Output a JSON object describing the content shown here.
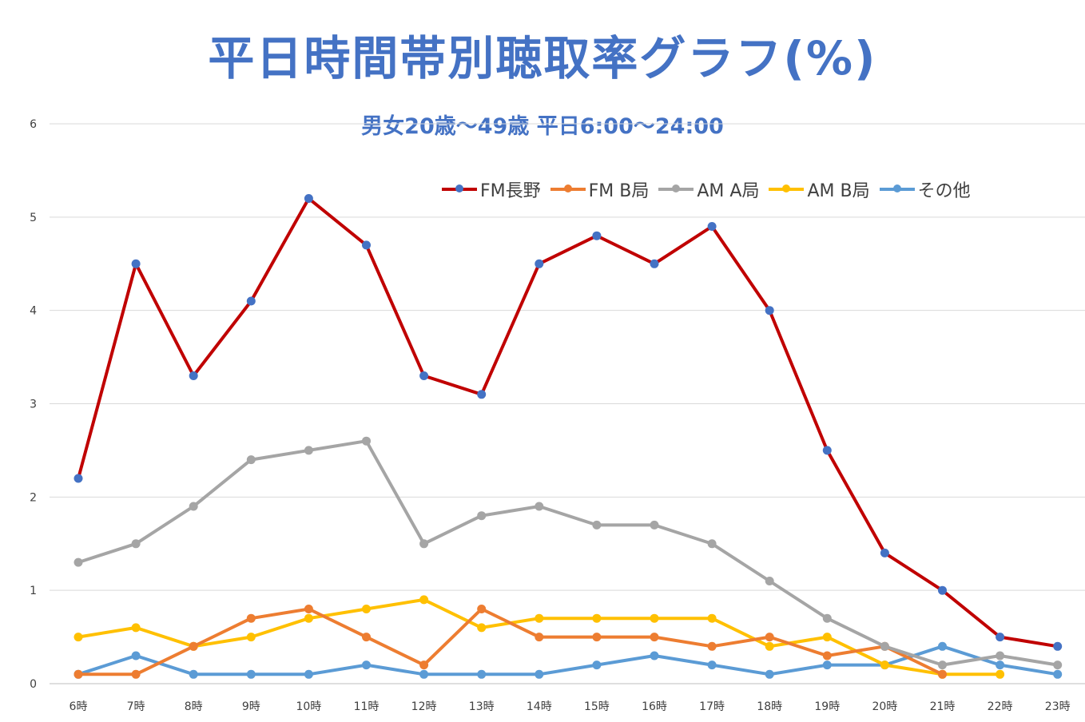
{
  "chart_data": {
    "type": "line",
    "title": "平日時間帯別聴取率グラフ(%)",
    "subtitle": "男女20歳～49歳 平日6:00～24:00",
    "xlabel": "",
    "ylabel": "",
    "categories": [
      "6時",
      "7時",
      "8時",
      "9時",
      "10時",
      "11時",
      "12時",
      "13時",
      "14時",
      "15時",
      "16時",
      "17時",
      "18時",
      "19時",
      "20時",
      "21時",
      "22時",
      "23時"
    ],
    "ylim": [
      0,
      6
    ],
    "yticks": [
      "0",
      "1",
      "2",
      "3",
      "4",
      "5",
      "6"
    ],
    "grid": true,
    "legend_position": "top-right",
    "series": [
      {
        "name": "FM長野",
        "color": "#c00000",
        "marker_color": "#4472c4",
        "values": [
          2.2,
          4.5,
          3.3,
          4.1,
          5.2,
          4.7,
          3.3,
          3.1,
          4.5,
          4.8,
          4.5,
          4.9,
          4.0,
          2.5,
          1.4,
          1.0,
          0.5,
          0.4
        ]
      },
      {
        "name": "FM B局",
        "color": "#ed7d31",
        "marker_color": "#ed7d31",
        "values": [
          0.1,
          0.1,
          0.4,
          0.7,
          0.8,
          0.5,
          0.2,
          0.8,
          0.5,
          0.5,
          0.5,
          0.4,
          0.5,
          0.3,
          0.4,
          0.1,
          null,
          null
        ]
      },
      {
        "name": "AM A局",
        "color": "#a5a5a5",
        "marker_color": "#a5a5a5",
        "values": [
          1.3,
          1.5,
          1.9,
          2.4,
          2.5,
          2.6,
          1.5,
          1.8,
          1.9,
          1.7,
          1.7,
          1.5,
          1.1,
          0.7,
          0.4,
          0.2,
          0.3,
          0.2
        ]
      },
      {
        "name": "AM B局",
        "color": "#ffc000",
        "marker_color": "#ffc000",
        "values": [
          0.5,
          0.6,
          0.4,
          0.5,
          0.7,
          0.8,
          0.9,
          0.6,
          0.7,
          0.7,
          0.7,
          0.7,
          0.4,
          0.5,
          0.2,
          0.1,
          0.1,
          null
        ]
      },
      {
        "name": "その他",
        "color": "#5b9bd5",
        "marker_color": "#5b9bd5",
        "values": [
          0.1,
          0.3,
          0.1,
          0.1,
          0.1,
          0.2,
          0.1,
          0.1,
          0.1,
          0.2,
          0.3,
          0.2,
          0.1,
          0.2,
          0.2,
          0.4,
          0.2,
          0.1
        ]
      }
    ]
  }
}
